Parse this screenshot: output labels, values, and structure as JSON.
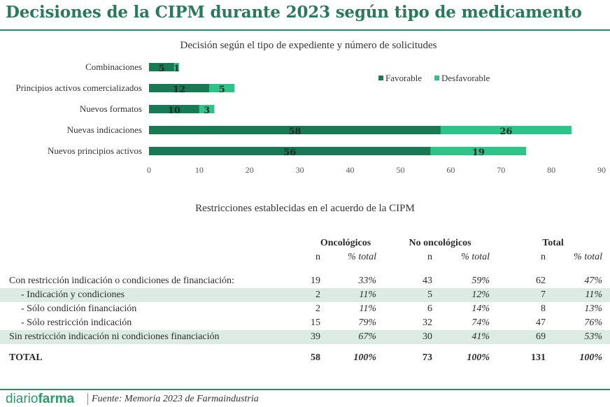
{
  "header": {
    "title": "Decisiones de la CIPM durante 2023 según tipo de medicamento"
  },
  "chart_data": {
    "type": "bar",
    "orientation": "horizontal",
    "stacked": true,
    "title": "Decisión según el tipo de expediente y número de solicitudes",
    "categories": [
      "Combinaciones",
      "Principios activos comercializados",
      "Nuevos formatos",
      "Nuevas indicaciones",
      "Nuevos principios activos"
    ],
    "series": [
      {
        "name": "Favorable",
        "values": [
          5,
          12,
          10,
          58,
          56
        ],
        "color": "#177a55"
      },
      {
        "name": "Desfavorable",
        "values": [
          1,
          5,
          3,
          26,
          19
        ],
        "color": "#2dc389"
      }
    ],
    "xlim": [
      0,
      90
    ],
    "xticks": [
      0,
      10,
      20,
      30,
      40,
      50,
      60,
      70,
      80,
      90
    ],
    "legend_position": "top-right",
    "grid": false
  },
  "table": {
    "title": "Restricciones establecidas en el acuerdo de la CIPM",
    "groups": [
      "Oncológicos",
      "No oncológicos",
      "Total"
    ],
    "subheaders": {
      "n": "n",
      "pct": "% total"
    },
    "rows": [
      {
        "label": "Con restricción indicación o condiciones de financiación:",
        "values": [
          "19",
          "33%",
          "43",
          "59%",
          "62",
          "47%"
        ]
      },
      {
        "label": "- Indicación y condiciones",
        "values": [
          "2",
          "11%",
          "5",
          "12%",
          "7",
          "11%"
        ]
      },
      {
        "label": "- Sólo condición financiación",
        "values": [
          "2",
          "11%",
          "6",
          "14%",
          "8",
          "13%"
        ]
      },
      {
        "label": "- Sólo restricción indicación",
        "values": [
          "15",
          "79%",
          "32",
          "74%",
          "47",
          "76%"
        ]
      },
      {
        "label": "Sin restricción indicación ni condiciones financiación",
        "values": [
          "39",
          "67%",
          "30",
          "41%",
          "69",
          "53%"
        ]
      }
    ],
    "total": {
      "label": "TOTAL",
      "values": [
        "58",
        "100%",
        "73",
        "100%",
        "131",
        "100%"
      ]
    }
  },
  "footer": {
    "brand_part1": "diario",
    "brand_part2": "farma",
    "source": "Fuente: Memoria 2023 de Farmaindustria"
  }
}
